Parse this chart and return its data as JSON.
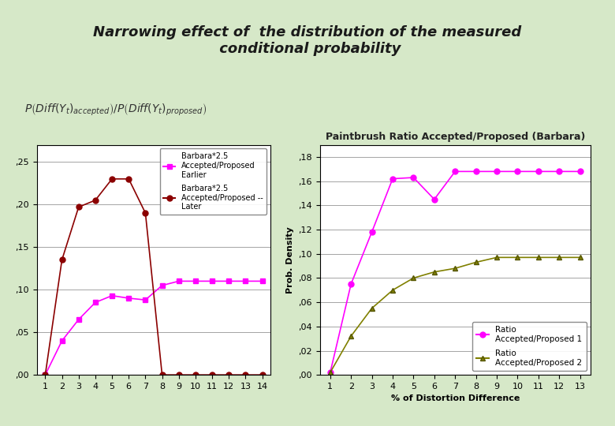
{
  "bg_color": "#d6e8c8",
  "title": "Narrowing effect of  the distribution of the measured\n conditional probability",
  "left_chart": {
    "xlim": [
      0.5,
      14.5
    ],
    "ylim": [
      0,
      0.27
    ],
    "yticks": [
      0,
      0.05,
      0.1,
      0.15,
      0.2,
      0.25
    ],
    "xticks": [
      1,
      2,
      3,
      4,
      5,
      6,
      7,
      8,
      9,
      10,
      11,
      12,
      13,
      14
    ],
    "series1": {
      "x": [
        1,
        2,
        3,
        4,
        5,
        6,
        7,
        8,
        9,
        10,
        11,
        12,
        13,
        14
      ],
      "y": [
        0,
        0.04,
        0.065,
        0.085,
        0.093,
        0.09,
        0.088,
        0.105,
        0.11,
        0.11,
        0.11,
        0.11,
        0.11,
        0.11
      ],
      "color": "#ff00ff",
      "marker": "s",
      "label": "Barbara*2.5\nAccepted/Proposed\nEarlier"
    },
    "series2": {
      "x": [
        1,
        2,
        3,
        4,
        5,
        6,
        7,
        8,
        9,
        10,
        11,
        12,
        13,
        14
      ],
      "y": [
        0,
        0.135,
        0.197,
        0.205,
        0.23,
        0.23,
        0.19,
        0,
        0,
        0,
        0,
        0,
        0,
        0
      ],
      "color": "#8b0000",
      "marker": "o",
      "label": "Barbara*2.5\nAccepted/Proposed --\nLater"
    }
  },
  "right_chart": {
    "title": "Paintbrush Ratio Accepted/Proposed (Barbara)",
    "xlabel": "% of Distortion Difference",
    "ylabel": "Prob. Density",
    "xlim": [
      0.5,
      13.5
    ],
    "ylim": [
      0,
      0.19
    ],
    "yticks": [
      0,
      0.02,
      0.04,
      0.06,
      0.08,
      0.1,
      0.12,
      0.14,
      0.16,
      0.18
    ],
    "xticks": [
      1,
      2,
      3,
      4,
      5,
      6,
      7,
      8,
      9,
      10,
      11,
      12,
      13
    ],
    "series1": {
      "x": [
        1,
        2,
        3,
        4,
        5,
        6,
        7,
        8,
        9,
        10,
        11,
        12,
        13
      ],
      "y": [
        0.002,
        0.075,
        0.118,
        0.162,
        0.163,
        0.145,
        0.168,
        0.168,
        0.168,
        0.168,
        0.168,
        0.168,
        0.168
      ],
      "color": "#ff00ff",
      "marker": "o",
      "label": "Ratio\nAccepted/Proposed 1"
    },
    "series2": {
      "x": [
        1,
        2,
        3,
        4,
        5,
        6,
        7,
        8,
        9,
        10,
        11,
        12,
        13
      ],
      "y": [
        0.002,
        0.032,
        0.055,
        0.07,
        0.08,
        0.085,
        0.088,
        0.093,
        0.097,
        0.097,
        0.097,
        0.097,
        0.097
      ],
      "color": "#808000",
      "marker": "^",
      "label": "Ratio\nAccepted/Proposed 2"
    }
  }
}
